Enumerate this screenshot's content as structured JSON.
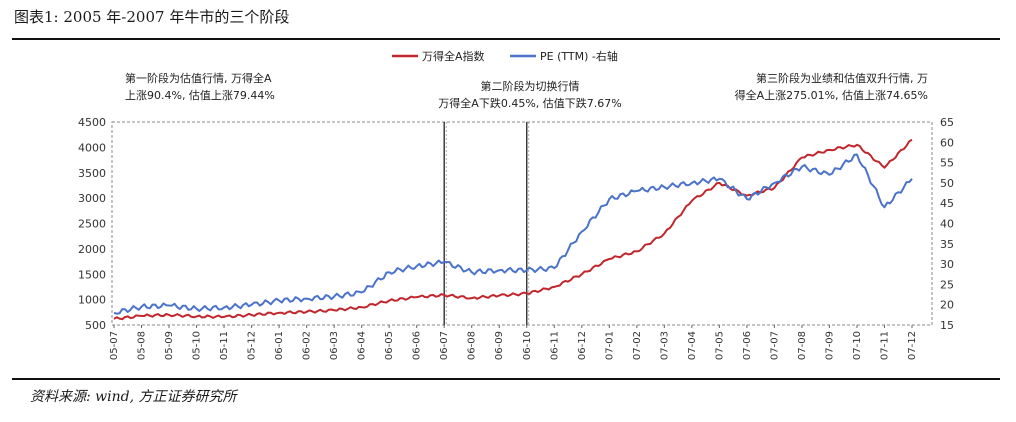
{
  "figure": {
    "title": "图表1:   2005 年-2007 年牛市的三个阶段",
    "source": "资料来源: wind, 方正证券研究所"
  },
  "chart_data": {
    "type": "line",
    "legend_position": "top-center",
    "series": [
      {
        "name": "万得全A指数",
        "color": "#c0272d",
        "axis": "left",
        "points": [
          [
            "2005-07",
            620
          ],
          [
            "2005-08",
            680
          ],
          [
            "2005-09",
            700
          ],
          [
            "2005-10",
            670
          ],
          [
            "2005-11",
            660
          ],
          [
            "2005-12",
            700
          ],
          [
            "2006-01",
            740
          ],
          [
            "2006-02",
            760
          ],
          [
            "2006-03",
            790
          ],
          [
            "2006-04",
            850
          ],
          [
            "2006-05",
            980
          ],
          [
            "2006-06",
            1050
          ],
          [
            "2006-07",
            1090
          ],
          [
            "2006-08",
            1030
          ],
          [
            "2006-09",
            1080
          ],
          [
            "2006-10",
            1120
          ],
          [
            "2006-11",
            1250
          ],
          [
            "2006-12",
            1500
          ],
          [
            "2007-01",
            1800
          ],
          [
            "2007-02",
            1950
          ],
          [
            "2007-03",
            2300
          ],
          [
            "2007-04",
            2950
          ],
          [
            "2007-05",
            3300
          ],
          [
            "2007-06",
            3050
          ],
          [
            "2007-07",
            3200
          ],
          [
            "2007-08",
            3800
          ],
          [
            "2007-09",
            3950
          ],
          [
            "2007-10",
            4050
          ],
          [
            "2007-11",
            3600
          ],
          [
            "2007-12",
            4150
          ]
        ]
      },
      {
        "name": "PE (TTM) -右轴",
        "color": "#4b73c9",
        "axis": "right",
        "points": [
          [
            "2005-07",
            18
          ],
          [
            "2005-08",
            19.5
          ],
          [
            "2005-09",
            19.8
          ],
          [
            "2005-10",
            19
          ],
          [
            "2005-11",
            19.3
          ],
          [
            "2005-12",
            20
          ],
          [
            "2006-01",
            21
          ],
          [
            "2006-02",
            21.5
          ],
          [
            "2006-03",
            22
          ],
          [
            "2006-04",
            23
          ],
          [
            "2006-05",
            28
          ],
          [
            "2006-06",
            29.5
          ],
          [
            "2006-07",
            30.5
          ],
          [
            "2006-08",
            28
          ],
          [
            "2006-09",
            28.5
          ],
          [
            "2006-10",
            28.5
          ],
          [
            "2006-11",
            29
          ],
          [
            "2006-12",
            38
          ],
          [
            "2007-01",
            46
          ],
          [
            "2007-02",
            48
          ],
          [
            "2007-03",
            49
          ],
          [
            "2007-04",
            50
          ],
          [
            "2007-05",
            51
          ],
          [
            "2007-06",
            46
          ],
          [
            "2007-07",
            50
          ],
          [
            "2007-08",
            54
          ],
          [
            "2007-09",
            52
          ],
          [
            "2007-10",
            57
          ],
          [
            "2007-11",
            44
          ],
          [
            "2007-12",
            51
          ]
        ]
      }
    ],
    "x_ticks": [
      "05-07",
      "05-08",
      "05-09",
      "05-10",
      "05-11",
      "05-12",
      "06-01",
      "06-02",
      "06-03",
      "06-04",
      "06-05",
      "06-06",
      "06-07",
      "06-08",
      "06-09",
      "06-10",
      "06-11",
      "06-12",
      "07-01",
      "07-02",
      "07-03",
      "07-04",
      "07-05",
      "07-06",
      "07-07",
      "07-08",
      "07-09",
      "07-10",
      "07-11",
      "07-12"
    ],
    "y_left": {
      "min": 500,
      "max": 4500,
      "ticks": [
        500,
        1000,
        1500,
        2000,
        2500,
        3000,
        3500,
        4000,
        4500
      ]
    },
    "y_right": {
      "min": 15,
      "max": 65,
      "ticks": [
        15,
        20,
        25,
        30,
        35,
        40,
        45,
        50,
        55,
        60,
        65
      ]
    },
    "phase_dividers": [
      "2006-07",
      "2006-10"
    ],
    "annotations": [
      {
        "lines": [
          "第一阶段为估值行情, 万得全A",
          "上涨90.4%, 估值上涨79.44%"
        ]
      },
      {
        "lines": [
          "第二阶段为切换行情",
          "万得全A下跌0.45%, 估值下跌7.67%"
        ]
      },
      {
        "lines": [
          "第三阶段为业绩和估值双升行情, 万",
          "得全A上涨275.01%, 估值上涨74.65%"
        ]
      }
    ]
  }
}
